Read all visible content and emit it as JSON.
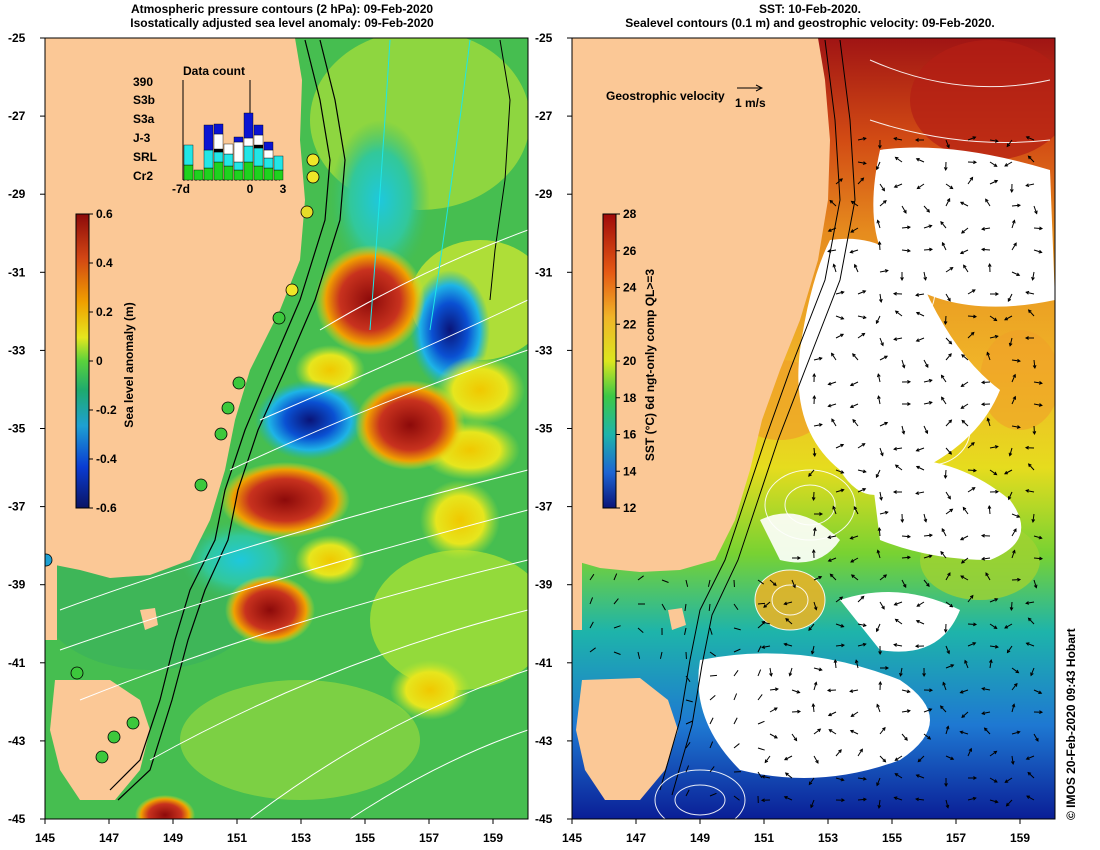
{
  "left_panel": {
    "title_line1": "Atmospheric pressure contours (2 hPa): 09-Feb-2020",
    "title_line2": "Isostatically adjusted sea level anomaly: 09-Feb-2020",
    "colorbar": {
      "label": "Sea level anomaly (m)",
      "ticks": [
        "0.6",
        "0.4",
        "0.2",
        "0",
        "-0.2",
        "-0.4",
        "-0.6"
      ]
    },
    "data_count": {
      "title": "Data count",
      "total": "390",
      "legend": [
        {
          "label": "S3b",
          "color": "#0a14d2"
        },
        {
          "label": "S3a",
          "color": "#ffffff"
        },
        {
          "label": "J-3",
          "color": "#000000"
        },
        {
          "label": "SRL",
          "color": "#22e6e6"
        },
        {
          "label": "Cr2",
          "color": "#1ed21e"
        }
      ],
      "x_labels": [
        "-7d",
        "0",
        "3"
      ]
    }
  },
  "right_panel": {
    "title_line1": "SST: 10-Feb-2020.",
    "title_line2": "Sealevel contours (0.1 m) and geostrophic velocity: 09-Feb-2020.",
    "velocity_key": {
      "label": "Geostrophic velocity",
      "scale": "1 m/s"
    },
    "colorbar": {
      "label": "SST (°C) 6d ngt-only comp QL>=3",
      "ticks": [
        "28",
        "26",
        "24",
        "22",
        "20",
        "18",
        "16",
        "14",
        "12"
      ]
    }
  },
  "axes": {
    "y_labels": [
      "-25",
      "-27",
      "-29",
      "-31",
      "-33",
      "-35",
      "-37",
      "-39",
      "-41",
      "-43",
      "-45"
    ],
    "x_labels": [
      "145",
      "147",
      "149",
      "151",
      "153",
      "155",
      "157",
      "159"
    ]
  },
  "credit": "© IMOS 20-Feb-2020 09:43 Hobart",
  "colors": {
    "land": "#fbc896",
    "sla_high": "#a50f0f",
    "sla_low": "#0a1e96",
    "sst_warm": "#b4281e",
    "sst_cold": "#1e2896"
  }
}
